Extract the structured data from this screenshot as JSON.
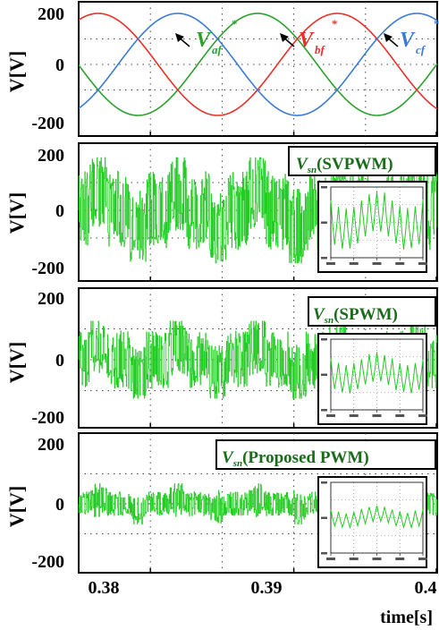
{
  "colors": {
    "phase_a": "#2ca02c",
    "phase_b": "#e8302a",
    "phase_c": "#3a7bd5",
    "vsn": "#22cc22",
    "label_green": "#1a6b1a"
  },
  "chart_data": [
    {
      "type": "line",
      "ylabel": "V[V]",
      "yticks": [
        "200",
        "0",
        "-200"
      ],
      "ylim": [
        -220,
        220
      ],
      "xlim": [
        0.375,
        0.4
      ],
      "grid": "dotted",
      "series": [
        {
          "name": "V_af*",
          "label_main": "V",
          "label_sub": "af",
          "label_sup": "*",
          "color": "#2ca02c",
          "amplitude": 200,
          "phase_deg": 0
        },
        {
          "name": "V_bf*",
          "label_main": "V",
          "label_sub": "bf",
          "label_sup": "*",
          "color": "#e8302a",
          "amplitude": 200,
          "phase_deg": -120
        },
        {
          "name": "V_cf*",
          "label_main": "V",
          "label_sub": "cf",
          "label_sup": "*",
          "color": "#3a7bd5",
          "amplitude": 200,
          "phase_deg": 120
        }
      ],
      "frequency_hz": 60
    },
    {
      "type": "line",
      "ylabel": "V[V]",
      "yticks": [
        "200",
        "0",
        "-200"
      ],
      "ylim": [
        -220,
        220
      ],
      "series_label": {
        "main": "V",
        "sub": "sn",
        "text": "(SVPWM)"
      },
      "envelope_levels": [
        -200,
        -133,
        -67,
        0,
        67,
        133,
        200
      ],
      "peak_abs": 190,
      "inset": true
    },
    {
      "type": "line",
      "ylabel": "V[V]",
      "yticks": [
        "200",
        "0",
        "-200"
      ],
      "ylim": [
        -220,
        220
      ],
      "series_label": {
        "main": "V",
        "sub": "sn",
        "text": "(SPWM)"
      },
      "envelope_levels": [
        -133,
        -67,
        0,
        67,
        133
      ],
      "peak_abs": 125,
      "inset": true
    },
    {
      "type": "line",
      "ylabel": "V[V]",
      "yticks": [
        "200",
        "0",
        "-200"
      ],
      "ylim": [
        -220,
        220
      ],
      "series_label": {
        "main": "V",
        "sub": "sn",
        "text": "(Proposed PWM)"
      },
      "envelope_levels": [
        -67,
        0,
        67
      ],
      "peak_abs": 67,
      "inset": true
    }
  ],
  "x_axis": {
    "ticks": [
      "0.38",
      "0.39",
      "0.4"
    ],
    "label": "time[s]"
  }
}
